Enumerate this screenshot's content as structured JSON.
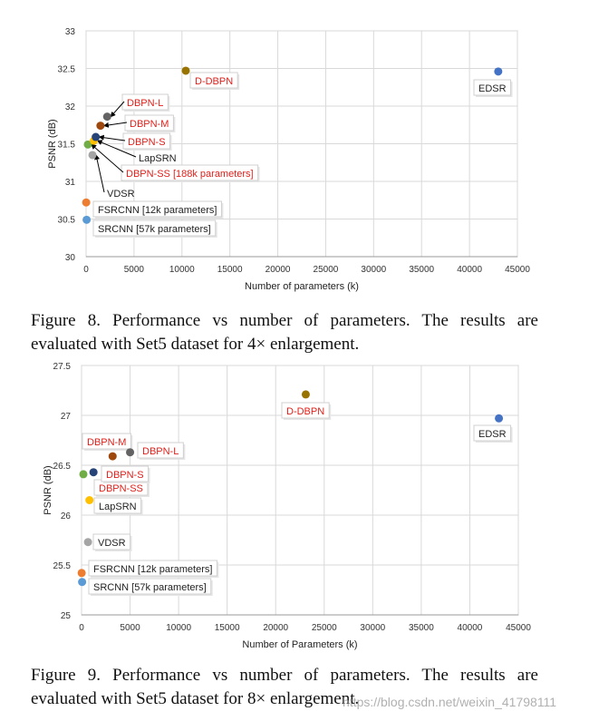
{
  "chart_data": [
    {
      "type": "scatter",
      "xlabel": "Number of parameters (k)",
      "ylabel": "PSNR (dB)",
      "xlim": [
        0,
        45000
      ],
      "ylim": [
        30,
        33
      ],
      "xticks": [
        0,
        5000,
        10000,
        15000,
        20000,
        25000,
        30000,
        35000,
        40000,
        45000
      ],
      "yticks": [
        30,
        30.5,
        31,
        31.5,
        32,
        32.5,
        33
      ],
      "ytick_labels": [
        "30",
        "30.5",
        "31",
        "31.5",
        "32",
        "32.5",
        "33"
      ],
      "grid": true,
      "points": [
        {
          "label": "SRCNN [57k parameters]",
          "x": 57,
          "y": 30.49,
          "color": "#5b9bd5",
          "label_color": "#222222",
          "arrow": false
        },
        {
          "label": "FSRCNN [12k parameters]",
          "x": 12,
          "y": 30.72,
          "color": "#ed7d31",
          "label_color": "#222222",
          "arrow": false
        },
        {
          "label": "VDSR",
          "x": 665,
          "y": 31.35,
          "color": "#a5a5a5",
          "label_color": "#222222",
          "arrow": true
        },
        {
          "label": "DBPN-SS [188k parameters]",
          "x": 188,
          "y": 31.49,
          "color": "#70ad47",
          "label_color": "#e0201b",
          "arrow": true
        },
        {
          "label": "LapSRN",
          "x": 812,
          "y": 31.54,
          "color": "#ffc000",
          "label_color": "#222222",
          "arrow": true
        },
        {
          "label": "DBPN-S",
          "x": 1010,
          "y": 31.59,
          "color": "#264478",
          "label_color": "#e0201b",
          "arrow": true
        },
        {
          "label": "DBPN-M",
          "x": 1500,
          "y": 31.74,
          "color": "#9e480e",
          "label_color": "#e0201b",
          "arrow": true
        },
        {
          "label": "DBPN-L",
          "x": 2200,
          "y": 31.86,
          "color": "#636363",
          "label_color": "#e0201b",
          "arrow": true
        },
        {
          "label": "D-DBPN",
          "x": 10400,
          "y": 32.47,
          "color": "#997300",
          "label_color": "#e0201b",
          "arrow": false
        },
        {
          "label": "EDSR",
          "x": 43000,
          "y": 32.46,
          "color": "#4472c4",
          "label_color": "#222222",
          "arrow": false
        }
      ]
    },
    {
      "type": "scatter",
      "xlabel": "Number of Parameters (k)",
      "ylabel": "PSNR (dB)",
      "xlim": [
        0,
        45000
      ],
      "ylim": [
        25,
        27.5
      ],
      "xticks": [
        0,
        5000,
        10000,
        15000,
        20000,
        25000,
        30000,
        35000,
        40000,
        45000
      ],
      "yticks": [
        25,
        25.5,
        26,
        26.5,
        27,
        27.5
      ],
      "ytick_labels": [
        "25",
        "25.5",
        "26",
        "26.5",
        "27",
        "27.5"
      ],
      "grid": true,
      "points": [
        {
          "label": "SRCNN [57k parameters]",
          "x": 57,
          "y": 25.33,
          "color": "#5b9bd5",
          "label_color": "#222222",
          "arrow": false
        },
        {
          "label": "FSRCNN [12k parameters]",
          "x": 12,
          "y": 25.42,
          "color": "#ed7d31",
          "label_color": "#222222",
          "arrow": false
        },
        {
          "label": "VDSR",
          "x": 665,
          "y": 25.73,
          "color": "#a5a5a5",
          "label_color": "#222222",
          "arrow": false
        },
        {
          "label": "LapSRN",
          "x": 812,
          "y": 26.15,
          "color": "#ffc000",
          "label_color": "#222222",
          "arrow": false
        },
        {
          "label": "DBPN-SS",
          "x": 188,
          "y": 26.41,
          "color": "#70ad47",
          "label_color": "#e0201b",
          "arrow": false
        },
        {
          "label": "DBPN-S",
          "x": 1230,
          "y": 26.43,
          "color": "#264478",
          "label_color": "#e0201b",
          "arrow": false
        },
        {
          "label": "DBPN-M",
          "x": 3200,
          "y": 26.59,
          "color": "#9e480e",
          "label_color": "#e0201b",
          "arrow": false
        },
        {
          "label": "DBPN-L",
          "x": 5000,
          "y": 26.63,
          "color": "#636363",
          "label_color": "#e0201b",
          "arrow": false
        },
        {
          "label": "D-DBPN",
          "x": 23100,
          "y": 27.21,
          "color": "#997300",
          "label_color": "#e0201b",
          "arrow": false
        },
        {
          "label": "EDSR",
          "x": 43000,
          "y": 26.97,
          "color": "#4472c4",
          "label_color": "#222222",
          "arrow": false
        }
      ]
    }
  ],
  "captions": {
    "fig8": "Figure 8. Performance vs number of parameters.  The results are evaluated with Set5 dataset for 4× enlargement.",
    "fig9": "Figure 9. Performance vs number of parameters.  The results are evaluated with Set5 dataset for 8× enlargement."
  },
  "watermark": "https://blog.csdn.net/weixin_41798111"
}
